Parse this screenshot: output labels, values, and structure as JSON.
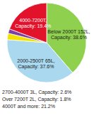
{
  "chart_data": {
    "type": "pie",
    "categories": [
      "Below 2000T 152L, Capacity: 38.6%",
      "2000-2500T 65L, Capacity: 37.6%",
      "2700-4000T 3L, Capacity: 2.6%",
      "Over 7200T 2L, Capacity: 1.8%",
      "4000-7200T, Capacity: 19.4%"
    ],
    "values": [
      38.6,
      37.6,
      2.6,
      1.8,
      19.4
    ],
    "colors": [
      "#8fd14f",
      "#a9d8ef",
      "#f2e200",
      "#7b3fa6",
      "#e3122b"
    ],
    "annotation": "4000T and more: 21.2%"
  }
}
